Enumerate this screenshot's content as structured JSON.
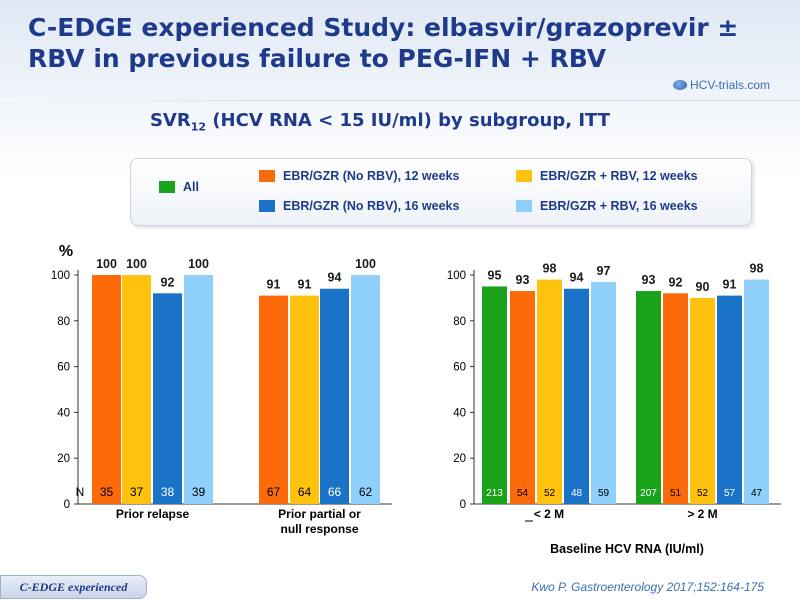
{
  "title": "C-EDGE experienced Study: elbasvir/grazoprevir ± RBV in previous failure to PEG-IFN + RBV",
  "logo": "HCV-trials.com",
  "subtitle": {
    "pre": "SVR",
    "sub": "12",
    "post": " (HCV RNA < 15 IU/ml) by subgroup, ITT"
  },
  "legend": [
    {
      "label": "All",
      "color": "#1aa31a"
    },
    {
      "label": "EBR/GZR (No RBV), 12 weeks",
      "color": "#fd6a0a"
    },
    {
      "label": "EBR/GZR + RBV, 12 weeks",
      "color": "#ffc20e"
    },
    {
      "label": "EBR/GZR (No RBV), 16 weeks",
      "color": "#1a73c6"
    },
    {
      "label": "EBR/GZR + RBV, 16 weeks",
      "color": "#8fd0fb"
    }
  ],
  "chart_data": [
    {
      "type": "bar",
      "ylabel": "%",
      "ylim": [
        0,
        100
      ],
      "yticks": [
        0,
        20,
        40,
        60,
        80,
        100
      ],
      "n_label": "N",
      "categories": [
        "Prior relapse",
        "Prior partial or null response"
      ],
      "series": [
        {
          "name": "EBR/GZR (No RBV), 12 weeks",
          "color": "#fd6a0a",
          "values": [
            100,
            91
          ],
          "n": [
            35,
            67
          ]
        },
        {
          "name": "EBR/GZR + RBV, 12 weeks",
          "color": "#ffc20e",
          "values": [
            100,
            91
          ],
          "n": [
            37,
            64
          ]
        },
        {
          "name": "EBR/GZR (No RBV), 16 weeks",
          "color": "#1a73c6",
          "values": [
            92,
            94
          ],
          "n": [
            38,
            66
          ]
        },
        {
          "name": "EBR/GZR + RBV, 16 weeks",
          "color": "#8fd0fb",
          "values": [
            100,
            100
          ],
          "n": [
            39,
            62
          ]
        }
      ]
    },
    {
      "type": "bar",
      "ylim": [
        0,
        100
      ],
      "yticks": [
        0,
        20,
        40,
        60,
        80,
        100
      ],
      "xlabel": "Baseline HCV RNA (IU/ml)",
      "categories": [
        "< 2 M",
        "> 2 M"
      ],
      "series": [
        {
          "name": "All",
          "color": "#1aa31a",
          "values": [
            95,
            93
          ],
          "n": [
            213,
            207
          ]
        },
        {
          "name": "EBR/GZR (No RBV), 12 weeks",
          "color": "#fd6a0a",
          "values": [
            93,
            92
          ],
          "n": [
            54,
            51
          ]
        },
        {
          "name": "EBR/GZR + RBV, 12 weeks",
          "color": "#ffc20e",
          "values": [
            98,
            90
          ],
          "n": [
            52,
            52
          ]
        },
        {
          "name": "EBR/GZR (No RBV), 16 weeks",
          "color": "#1a73c6",
          "values": [
            94,
            91
          ],
          "n": [
            48,
            57
          ]
        },
        {
          "name": "EBR/GZR + RBV, 16 weeks",
          "color": "#8fd0fb",
          "values": [
            97,
            98
          ],
          "n": [
            59,
            47
          ]
        }
      ]
    }
  ],
  "footer": {
    "tag": "C-EDGE experienced",
    "reference": "Kwo P. Gastroenterology 2017;152:164-175"
  }
}
